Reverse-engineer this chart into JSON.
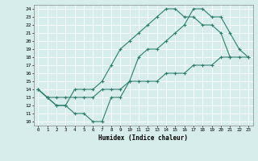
{
  "xlabel": "Humidex (Indice chaleur)",
  "xlim": [
    -0.5,
    23.5
  ],
  "ylim": [
    9.5,
    24.5
  ],
  "xticks": [
    0,
    1,
    2,
    3,
    4,
    5,
    6,
    7,
    8,
    9,
    10,
    11,
    12,
    13,
    14,
    15,
    16,
    17,
    18,
    19,
    20,
    21,
    22,
    23
  ],
  "yticks": [
    10,
    11,
    12,
    13,
    14,
    15,
    16,
    17,
    18,
    19,
    20,
    21,
    22,
    23,
    24
  ],
  "bg_color": "#d7edeb",
  "grid_color": "#ffffff",
  "line_color": "#2e7d6d",
  "line1_x": [
    0,
    1,
    2,
    3,
    4,
    5,
    6,
    7,
    8,
    9,
    10,
    11,
    12,
    13,
    14,
    15,
    16,
    17,
    18,
    19,
    20,
    21,
    22,
    23
  ],
  "line1_y": [
    14,
    13,
    12,
    12,
    11,
    11,
    10,
    10,
    13,
    13,
    15,
    18,
    19,
    19,
    20,
    21,
    22,
    24,
    24,
    23,
    23,
    21,
    19,
    18
  ],
  "line2_x": [
    0,
    1,
    2,
    3,
    4,
    5,
    6,
    7,
    8,
    9,
    10,
    11,
    12,
    13,
    14,
    15,
    16,
    17,
    18,
    19,
    20,
    21
  ],
  "line2_y": [
    14,
    13,
    12,
    12,
    14,
    14,
    14,
    15,
    17,
    19,
    20,
    21,
    22,
    23,
    24,
    24,
    23,
    23,
    22,
    22,
    21,
    18
  ],
  "line3_x": [
    0,
    1,
    2,
    3,
    4,
    5,
    6,
    7,
    8,
    9,
    10,
    11,
    12,
    13,
    14,
    15,
    16,
    17,
    18,
    19,
    20,
    21,
    22,
    23
  ],
  "line3_y": [
    14,
    13,
    13,
    13,
    13,
    13,
    13,
    14,
    14,
    14,
    15,
    15,
    15,
    15,
    16,
    16,
    16,
    17,
    17,
    17,
    18,
    18,
    18,
    18
  ]
}
